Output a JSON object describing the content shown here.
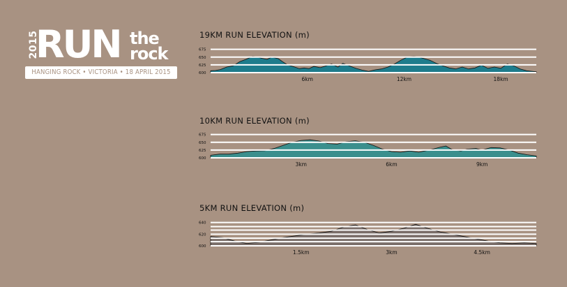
{
  "logo": {
    "year": "2015",
    "run": "RUN",
    "the": "the",
    "rock": "rock",
    "subtitle": "HANGING ROCK • VICTORIA • 18 APRIL 2015"
  },
  "chart_data": [
    {
      "type": "area",
      "title": "19KM RUN ELEVATION (m)",
      "color": "#1e7c8c",
      "xmax": 20.2,
      "ylim": [
        600,
        690
      ],
      "yticks": [
        600,
        625,
        650,
        675
      ],
      "ytick_labels": [
        "600",
        "625",
        "650",
        "675"
      ],
      "xticks": [
        6,
        12,
        18
      ],
      "xtick_labels": [
        "6km",
        "12km",
        "18km"
      ],
      "x": [
        0,
        0.3,
        0.6,
        1.0,
        1.4,
        1.8,
        2.2,
        2.6,
        2.9,
        3.2,
        3.5,
        3.8,
        4.2,
        4.5,
        4.8,
        5.1,
        5.5,
        5.8,
        6.1,
        6.4,
        6.8,
        7.1,
        7.5,
        7.9,
        8.2,
        8.6,
        9.0,
        9.4,
        9.8,
        10.2,
        10.6,
        11.0,
        11.4,
        11.8,
        12.2,
        12.6,
        12.9,
        13.2,
        13.6,
        14.0,
        14.4,
        14.8,
        15.2,
        15.6,
        16.0,
        16.4,
        16.8,
        17.2,
        17.6,
        18.0,
        18.4,
        18.8,
        19.2,
        19.6,
        20.2
      ],
      "values": [
        606,
        607,
        610,
        618,
        622,
        635,
        643,
        652,
        650,
        646,
        643,
        650,
        645,
        634,
        624,
        620,
        613,
        615,
        613,
        620,
        616,
        621,
        628,
        618,
        630,
        622,
        614,
        608,
        604,
        609,
        612,
        618,
        628,
        640,
        650,
        652,
        650,
        646,
        640,
        630,
        622,
        615,
        612,
        618,
        612,
        615,
        624,
        614,
        618,
        614,
        628,
        622,
        612,
        606,
        603
      ]
    },
    {
      "type": "area",
      "title": "10KM RUN ELEVATION (m)",
      "color": "#3b8f8d",
      "xmax": 10.8,
      "ylim": [
        600,
        690
      ],
      "yticks": [
        600,
        625,
        650,
        675
      ],
      "ytick_labels": [
        "600",
        "625",
        "650",
        "675"
      ],
      "xticks": [
        3,
        6,
        9
      ],
      "xtick_labels": [
        "3km",
        "6km",
        "9km"
      ],
      "x": [
        0,
        0.3,
        0.6,
        0.9,
        1.2,
        1.5,
        1.8,
        2.1,
        2.4,
        2.7,
        3.0,
        3.3,
        3.6,
        3.9,
        4.2,
        4.5,
        4.8,
        5.1,
        5.4,
        5.7,
        6.0,
        6.3,
        6.6,
        6.9,
        7.1,
        7.3,
        7.6,
        7.8,
        8.0,
        8.3,
        8.5,
        8.8,
        9.0,
        9.3,
        9.6,
        9.9,
        10.2,
        10.5,
        10.8
      ],
      "values": [
        608,
        612,
        612,
        615,
        620,
        622,
        623,
        630,
        640,
        650,
        656,
        658,
        654,
        646,
        644,
        652,
        655,
        650,
        640,
        628,
        620,
        618,
        622,
        618,
        622,
        626,
        634,
        638,
        627,
        622,
        628,
        630,
        625,
        633,
        632,
        625,
        615,
        610,
        606
      ]
    },
    {
      "type": "area",
      "title": "5KM RUN ELEVATION (m)",
      "color": "#7a6e69",
      "xmax": 5.4,
      "ylim": [
        600,
        648
      ],
      "yticks": [
        600,
        620,
        640
      ],
      "ytick_labels": [
        "600",
        "620",
        "640"
      ],
      "gridlines": [
        600,
        607,
        613,
        620,
        627,
        633,
        640
      ],
      "xticks": [
        1.5,
        3,
        4.5
      ],
      "xtick_labels": [
        "1.5km",
        "3km",
        "4.5km"
      ],
      "x": [
        0,
        0.2,
        0.4,
        0.6,
        0.8,
        1.0,
        1.2,
        1.4,
        1.6,
        1.8,
        2.0,
        2.2,
        2.4,
        2.6,
        2.8,
        3.0,
        3.2,
        3.4,
        3.6,
        3.8,
        4.0,
        4.2,
        4.4,
        4.6,
        4.8,
        5.0,
        5.2,
        5.4
      ],
      "values": [
        616,
        614,
        608,
        604,
        606,
        610,
        614,
        617,
        620,
        622,
        625,
        632,
        636,
        628,
        622,
        625,
        630,
        637,
        630,
        624,
        620,
        616,
        612,
        608,
        605,
        604,
        605,
        604
      ]
    }
  ]
}
